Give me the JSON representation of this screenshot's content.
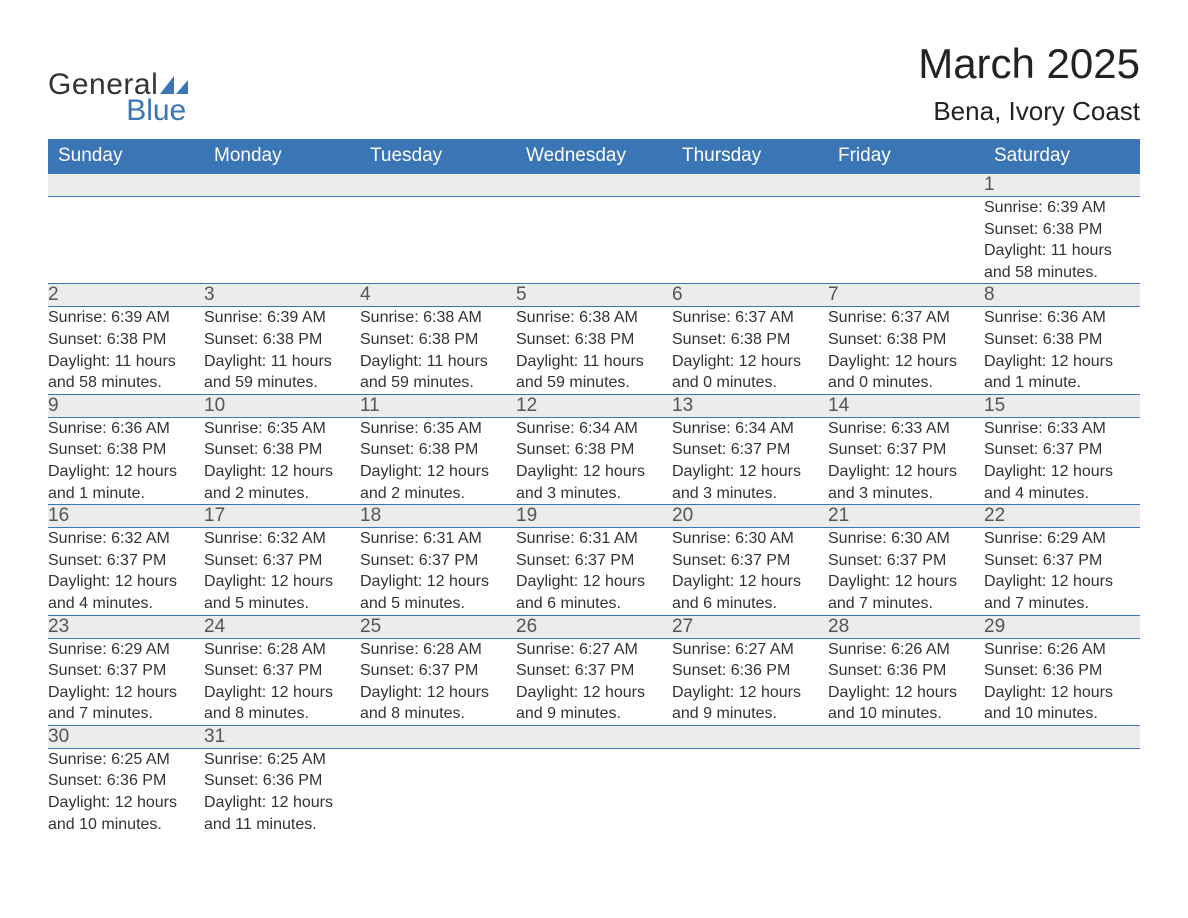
{
  "logo": {
    "line1": "General",
    "line2": "Blue"
  },
  "header": {
    "month_title": "March 2025",
    "location": "Bena, Ivory Coast"
  },
  "theme": {
    "header_bg": "#3a75b5",
    "header_fg": "#ffffff",
    "daynum_bg": "#ececec",
    "daynum_fg": "#555555",
    "body_fg": "#333333",
    "border": "#3a75b5",
    "title_fontsize": 42,
    "location_fontsize": 26,
    "dayheader_fontsize": 19,
    "cell_fontsize": 16
  },
  "weekdays": [
    "Sunday",
    "Monday",
    "Tuesday",
    "Wednesday",
    "Thursday",
    "Friday",
    "Saturday"
  ],
  "weeks": [
    [
      null,
      null,
      null,
      null,
      null,
      null,
      {
        "n": "1",
        "sunrise": "Sunrise: 6:39 AM",
        "sunset": "Sunset: 6:38 PM",
        "daylight": "Daylight: 11 hours and 58 minutes."
      }
    ],
    [
      {
        "n": "2",
        "sunrise": "Sunrise: 6:39 AM",
        "sunset": "Sunset: 6:38 PM",
        "daylight": "Daylight: 11 hours and 58 minutes."
      },
      {
        "n": "3",
        "sunrise": "Sunrise: 6:39 AM",
        "sunset": "Sunset: 6:38 PM",
        "daylight": "Daylight: 11 hours and 59 minutes."
      },
      {
        "n": "4",
        "sunrise": "Sunrise: 6:38 AM",
        "sunset": "Sunset: 6:38 PM",
        "daylight": "Daylight: 11 hours and 59 minutes."
      },
      {
        "n": "5",
        "sunrise": "Sunrise: 6:38 AM",
        "sunset": "Sunset: 6:38 PM",
        "daylight": "Daylight: 11 hours and 59 minutes."
      },
      {
        "n": "6",
        "sunrise": "Sunrise: 6:37 AM",
        "sunset": "Sunset: 6:38 PM",
        "daylight": "Daylight: 12 hours and 0 minutes."
      },
      {
        "n": "7",
        "sunrise": "Sunrise: 6:37 AM",
        "sunset": "Sunset: 6:38 PM",
        "daylight": "Daylight: 12 hours and 0 minutes."
      },
      {
        "n": "8",
        "sunrise": "Sunrise: 6:36 AM",
        "sunset": "Sunset: 6:38 PM",
        "daylight": "Daylight: 12 hours and 1 minute."
      }
    ],
    [
      {
        "n": "9",
        "sunrise": "Sunrise: 6:36 AM",
        "sunset": "Sunset: 6:38 PM",
        "daylight": "Daylight: 12 hours and 1 minute."
      },
      {
        "n": "10",
        "sunrise": "Sunrise: 6:35 AM",
        "sunset": "Sunset: 6:38 PM",
        "daylight": "Daylight: 12 hours and 2 minutes."
      },
      {
        "n": "11",
        "sunrise": "Sunrise: 6:35 AM",
        "sunset": "Sunset: 6:38 PM",
        "daylight": "Daylight: 12 hours and 2 minutes."
      },
      {
        "n": "12",
        "sunrise": "Sunrise: 6:34 AM",
        "sunset": "Sunset: 6:38 PM",
        "daylight": "Daylight: 12 hours and 3 minutes."
      },
      {
        "n": "13",
        "sunrise": "Sunrise: 6:34 AM",
        "sunset": "Sunset: 6:37 PM",
        "daylight": "Daylight: 12 hours and 3 minutes."
      },
      {
        "n": "14",
        "sunrise": "Sunrise: 6:33 AM",
        "sunset": "Sunset: 6:37 PM",
        "daylight": "Daylight: 12 hours and 3 minutes."
      },
      {
        "n": "15",
        "sunrise": "Sunrise: 6:33 AM",
        "sunset": "Sunset: 6:37 PM",
        "daylight": "Daylight: 12 hours and 4 minutes."
      }
    ],
    [
      {
        "n": "16",
        "sunrise": "Sunrise: 6:32 AM",
        "sunset": "Sunset: 6:37 PM",
        "daylight": "Daylight: 12 hours and 4 minutes."
      },
      {
        "n": "17",
        "sunrise": "Sunrise: 6:32 AM",
        "sunset": "Sunset: 6:37 PM",
        "daylight": "Daylight: 12 hours and 5 minutes."
      },
      {
        "n": "18",
        "sunrise": "Sunrise: 6:31 AM",
        "sunset": "Sunset: 6:37 PM",
        "daylight": "Daylight: 12 hours and 5 minutes."
      },
      {
        "n": "19",
        "sunrise": "Sunrise: 6:31 AM",
        "sunset": "Sunset: 6:37 PM",
        "daylight": "Daylight: 12 hours and 6 minutes."
      },
      {
        "n": "20",
        "sunrise": "Sunrise: 6:30 AM",
        "sunset": "Sunset: 6:37 PM",
        "daylight": "Daylight: 12 hours and 6 minutes."
      },
      {
        "n": "21",
        "sunrise": "Sunrise: 6:30 AM",
        "sunset": "Sunset: 6:37 PM",
        "daylight": "Daylight: 12 hours and 7 minutes."
      },
      {
        "n": "22",
        "sunrise": "Sunrise: 6:29 AM",
        "sunset": "Sunset: 6:37 PM",
        "daylight": "Daylight: 12 hours and 7 minutes."
      }
    ],
    [
      {
        "n": "23",
        "sunrise": "Sunrise: 6:29 AM",
        "sunset": "Sunset: 6:37 PM",
        "daylight": "Daylight: 12 hours and 7 minutes."
      },
      {
        "n": "24",
        "sunrise": "Sunrise: 6:28 AM",
        "sunset": "Sunset: 6:37 PM",
        "daylight": "Daylight: 12 hours and 8 minutes."
      },
      {
        "n": "25",
        "sunrise": "Sunrise: 6:28 AM",
        "sunset": "Sunset: 6:37 PM",
        "daylight": "Daylight: 12 hours and 8 minutes."
      },
      {
        "n": "26",
        "sunrise": "Sunrise: 6:27 AM",
        "sunset": "Sunset: 6:37 PM",
        "daylight": "Daylight: 12 hours and 9 minutes."
      },
      {
        "n": "27",
        "sunrise": "Sunrise: 6:27 AM",
        "sunset": "Sunset: 6:36 PM",
        "daylight": "Daylight: 12 hours and 9 minutes."
      },
      {
        "n": "28",
        "sunrise": "Sunrise: 6:26 AM",
        "sunset": "Sunset: 6:36 PM",
        "daylight": "Daylight: 12 hours and 10 minutes."
      },
      {
        "n": "29",
        "sunrise": "Sunrise: 6:26 AM",
        "sunset": "Sunset: 6:36 PM",
        "daylight": "Daylight: 12 hours and 10 minutes."
      }
    ],
    [
      {
        "n": "30",
        "sunrise": "Sunrise: 6:25 AM",
        "sunset": "Sunset: 6:36 PM",
        "daylight": "Daylight: 12 hours and 10 minutes."
      },
      {
        "n": "31",
        "sunrise": "Sunrise: 6:25 AM",
        "sunset": "Sunset: 6:36 PM",
        "daylight": "Daylight: 12 hours and 11 minutes."
      },
      null,
      null,
      null,
      null,
      null
    ]
  ]
}
